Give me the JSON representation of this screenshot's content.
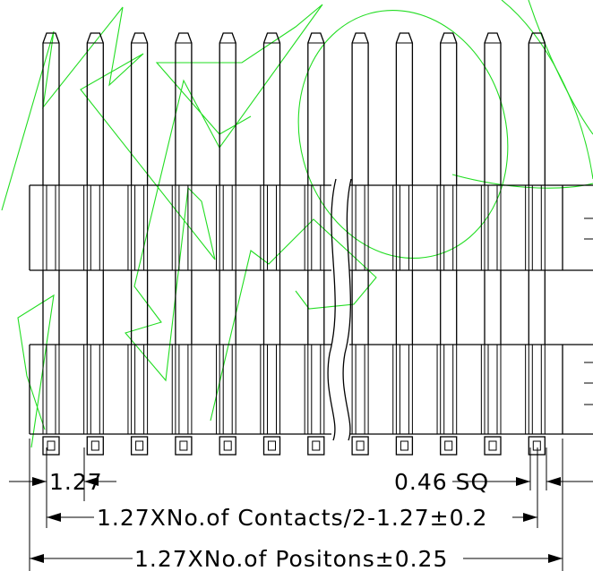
{
  "drawing": {
    "pin_count_shown": 12,
    "break_after_pin": 7,
    "dimensions": {
      "pitch": "1.27",
      "pin_size": "0.46 SQ",
      "contacts_length": "1.27XNo.of Contacts/2-1.27±0.2",
      "positions_length": "1.27XNo.of Positons±0.25"
    }
  }
}
